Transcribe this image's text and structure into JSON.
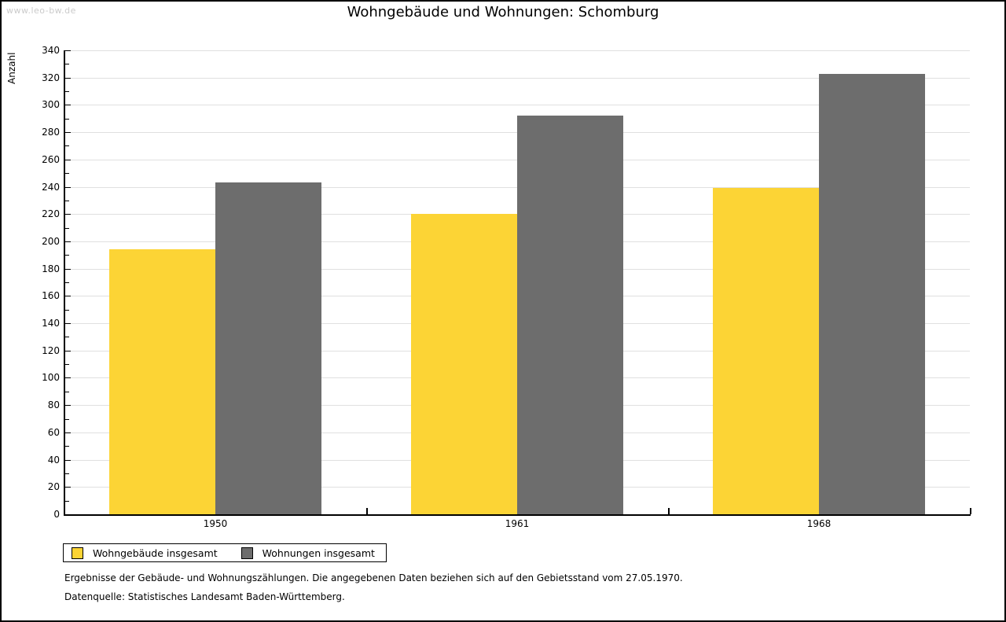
{
  "watermark": "www.leo-bw.de",
  "title": "Wohngebäude und Wohnungen: Schomburg",
  "footnotes": [
    "Ergebnisse der Gebäude- und Wohnungszählungen. Die angegebenen Daten beziehen sich auf den Gebietsstand vom 27.05.1970.",
    "Datenquelle: Statistisches Landesamt Baden-Württemberg."
  ],
  "chart_data": {
    "type": "bar",
    "title": "Wohngebäude und Wohnungen: Schomburg",
    "categories": [
      "1950",
      "1961",
      "1968"
    ],
    "series": [
      {
        "name": "Wohngebäude insgesamt",
        "key": "wohngebaeude",
        "color": "#fcd435",
        "values": [
          194,
          220,
          239
        ]
      },
      {
        "name": "Wohnungen insgesamt",
        "key": "wohnungen",
        "color": "#6d6d6d",
        "values": [
          243,
          292,
          323
        ]
      }
    ],
    "xlabel": "",
    "ylabel": "Anzahl",
    "ylim": [
      0,
      340
    ],
    "y_major_step": 20,
    "y_minor_step": 10,
    "grid": true,
    "legend_position": "bottom-left"
  },
  "colors": {
    "background": "#ffffff",
    "frame_border": "#000000",
    "grid": "#e0e0e0",
    "axis": "#000000",
    "watermark": "#cbcbcb",
    "bar_yellow": "#fcd435",
    "bar_gray": "#6d6d6d"
  }
}
